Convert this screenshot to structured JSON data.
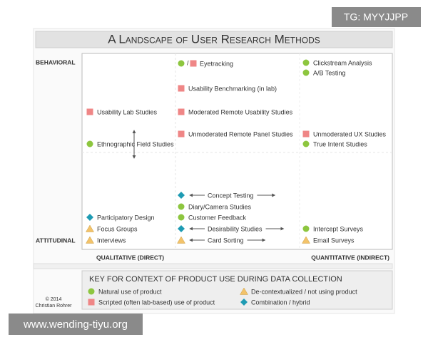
{
  "badge": "TG: MYYJJPP",
  "title": "A Landscape of User Research Methods",
  "axes": {
    "top": "BEHAVIORAL",
    "bottom": "ATTITUDINAL",
    "left": "QUALITATIVE (DIRECT)",
    "right": "QUANTITATIVE (INDIRECT)"
  },
  "eyetracking_slash": "/",
  "methods": [
    "Eyetracking",
    "Usability Benchmarking (in lab)",
    "Usability Lab Studies",
    "Moderated Remote Usability Studies",
    "Unmoderated Remote Panel Studies",
    "Ethnographic Field Studies",
    "Clickstream Analysis",
    "A/B Testing",
    "Unmoderated UX Studies",
    "True Intent Studies",
    "Concept Testing",
    "Diary/Camera Studies",
    "Customer Feedback",
    "Participatory Design",
    "Focus Groups",
    "Desirability Studies",
    "Intercept Surveys",
    "Interviews",
    "Card Sorting",
    "Email Surveys"
  ],
  "key": {
    "title": "KEY FOR CONTEXT OF PRODUCT USE DURING DATA COLLECTION",
    "items": [
      "Natural use of product",
      "Scripted (often lab-based) use of product",
      "De-contextualized / not using product",
      "Combination / hybrid"
    ]
  },
  "credit": [
    "© 2014",
    "Christian Rohrer"
  ],
  "watermark": "www.wending-tiyu.org"
}
